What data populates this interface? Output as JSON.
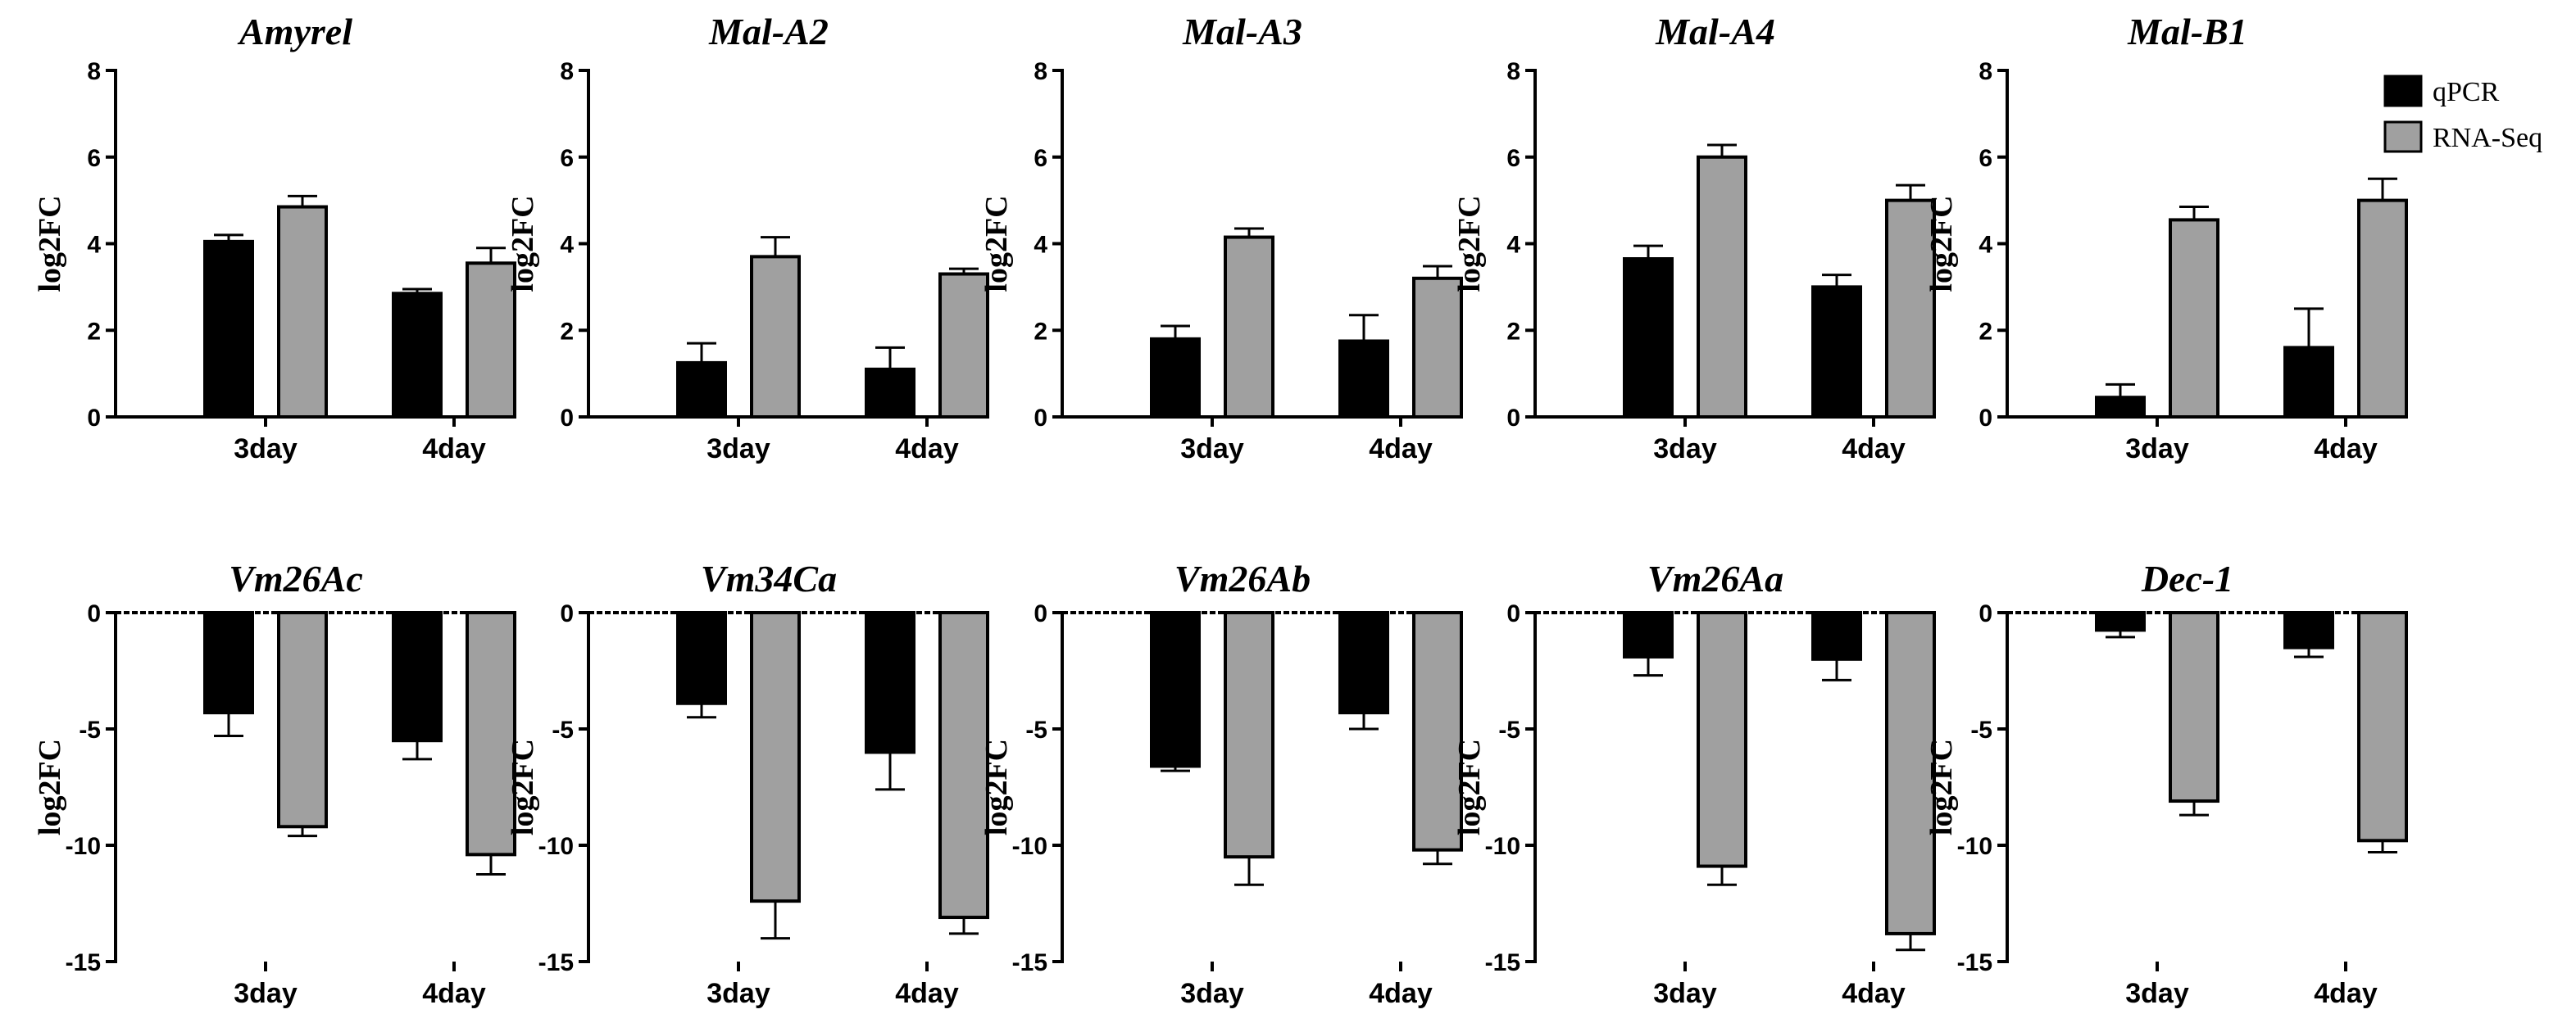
{
  "chart_data": {
    "type": "bar",
    "legend": {
      "placement": "top-right",
      "entries": [
        {
          "name": "qPCR",
          "color": "#000000"
        },
        {
          "name": "RNA-Seq",
          "color": "#a0a0a0"
        }
      ]
    },
    "panels": [
      {
        "title": "Amyrel",
        "ylabel": "log2FC",
        "ylim": [
          0,
          8
        ],
        "yticks": [
          "0",
          "2",
          "4",
          "6",
          "8"
        ],
        "categories": [
          "3day",
          "4day"
        ],
        "series": [
          {
            "name": "qPCR",
            "values": [
              4.05,
              2.85
            ],
            "errors": [
              0.15,
              0.1
            ]
          },
          {
            "name": "RNA-Seq",
            "values": [
              4.85,
              3.55
            ],
            "errors": [
              0.25,
              0.35
            ]
          }
        ]
      },
      {
        "title": "Mal-A2",
        "ylabel": "log2FC",
        "ylim": [
          0,
          8
        ],
        "yticks": [
          "0",
          "2",
          "4",
          "6",
          "8"
        ],
        "categories": [
          "3day",
          "4day"
        ],
        "series": [
          {
            "name": "qPCR",
            "values": [
              1.25,
              1.1
            ],
            "errors": [
              0.45,
              0.5
            ]
          },
          {
            "name": "RNA-Seq",
            "values": [
              3.7,
              3.3
            ],
            "errors": [
              0.45,
              0.12
            ]
          }
        ]
      },
      {
        "title": "Mal-A3",
        "ylabel": "log2FC",
        "ylim": [
          0,
          8
        ],
        "yticks": [
          "0",
          "2",
          "4",
          "6",
          "8"
        ],
        "categories": [
          "3day",
          "4day"
        ],
        "series": [
          {
            "name": "qPCR",
            "values": [
              1.8,
              1.75
            ],
            "errors": [
              0.3,
              0.6
            ]
          },
          {
            "name": "RNA-Seq",
            "values": [
              4.15,
              3.2
            ],
            "errors": [
              0.2,
              0.28
            ]
          }
        ]
      },
      {
        "title": "Mal-A4",
        "ylabel": "log2FC",
        "ylim": [
          0,
          8
        ],
        "yticks": [
          "0",
          "2",
          "4",
          "6",
          "8"
        ],
        "categories": [
          "3day",
          "4day"
        ],
        "series": [
          {
            "name": "qPCR",
            "values": [
              3.65,
              3.0
            ],
            "errors": [
              0.3,
              0.28
            ]
          },
          {
            "name": "RNA-Seq",
            "values": [
              6.0,
              5.0
            ],
            "errors": [
              0.28,
              0.35
            ]
          }
        ]
      },
      {
        "title": "Mal-B1",
        "ylabel": "log2FC",
        "ylim": [
          0,
          8
        ],
        "yticks": [
          "0",
          "2",
          "4",
          "6",
          "8"
        ],
        "categories": [
          "3day",
          "4day"
        ],
        "series": [
          {
            "name": "qPCR",
            "values": [
              0.45,
              1.6
            ],
            "errors": [
              0.3,
              0.9
            ]
          },
          {
            "name": "RNA-Seq",
            "values": [
              4.55,
              5.0
            ],
            "errors": [
              0.3,
              0.5
            ]
          }
        ]
      },
      {
        "title": "Vm26Ac",
        "ylabel": "log2FC",
        "ylim": [
          -15,
          0
        ],
        "yticks": [
          "0",
          "-5",
          "-10",
          "-15"
        ],
        "categories": [
          "3day",
          "4day"
        ],
        "series": [
          {
            "name": "qPCR",
            "values": [
              -4.3,
              -5.5
            ],
            "errors": [
              1.0,
              0.8
            ]
          },
          {
            "name": "RNA-Seq",
            "values": [
              -9.2,
              -10.4
            ],
            "errors": [
              0.4,
              0.85
            ]
          }
        ]
      },
      {
        "title": "Vm34Ca",
        "ylabel": "log2FC",
        "ylim": [
          -15,
          0
        ],
        "yticks": [
          "0",
          "-5",
          "-10",
          "-15"
        ],
        "categories": [
          "3day",
          "4day"
        ],
        "series": [
          {
            "name": "qPCR",
            "values": [
              -3.9,
              -6.0
            ],
            "errors": [
              0.6,
              1.6
            ]
          },
          {
            "name": "RNA-Seq",
            "values": [
              -12.4,
              -13.1
            ],
            "errors": [
              1.6,
              0.7
            ]
          }
        ]
      },
      {
        "title": "Vm26Ab",
        "ylabel": "log2FC",
        "ylim": [
          -15,
          0
        ],
        "yticks": [
          "0",
          "-5",
          "-10",
          "-15"
        ],
        "categories": [
          "3day",
          "4day"
        ],
        "series": [
          {
            "name": "qPCR",
            "values": [
              -6.6,
              -4.3
            ],
            "errors": [
              0.2,
              0.7
            ]
          },
          {
            "name": "RNA-Seq",
            "values": [
              -10.5,
              -10.2
            ],
            "errors": [
              1.2,
              0.6
            ]
          }
        ]
      },
      {
        "title": "Vm26Aa",
        "ylabel": "log2FC",
        "ylim": [
          -15,
          0
        ],
        "yticks": [
          "0",
          "-5",
          "-10",
          "-15"
        ],
        "categories": [
          "3day",
          "4day"
        ],
        "series": [
          {
            "name": "qPCR",
            "values": [
              -1.9,
              -2.0
            ],
            "errors": [
              0.8,
              0.9
            ]
          },
          {
            "name": "RNA-Seq",
            "values": [
              -10.9,
              -13.8
            ],
            "errors": [
              0.8,
              0.7
            ]
          }
        ]
      },
      {
        "title": "Dec-1",
        "ylabel": "log2FC",
        "ylim": [
          -15,
          0
        ],
        "yticks": [
          "0",
          "-5",
          "-10",
          "-15"
        ],
        "categories": [
          "3day",
          "4day"
        ],
        "series": [
          {
            "name": "qPCR",
            "values": [
              -0.75,
              -1.5
            ],
            "errors": [
              0.3,
              0.4
            ]
          },
          {
            "name": "RNA-Seq",
            "values": [
              -8.1,
              -9.8
            ],
            "errors": [
              0.6,
              0.5
            ]
          }
        ]
      }
    ]
  }
}
